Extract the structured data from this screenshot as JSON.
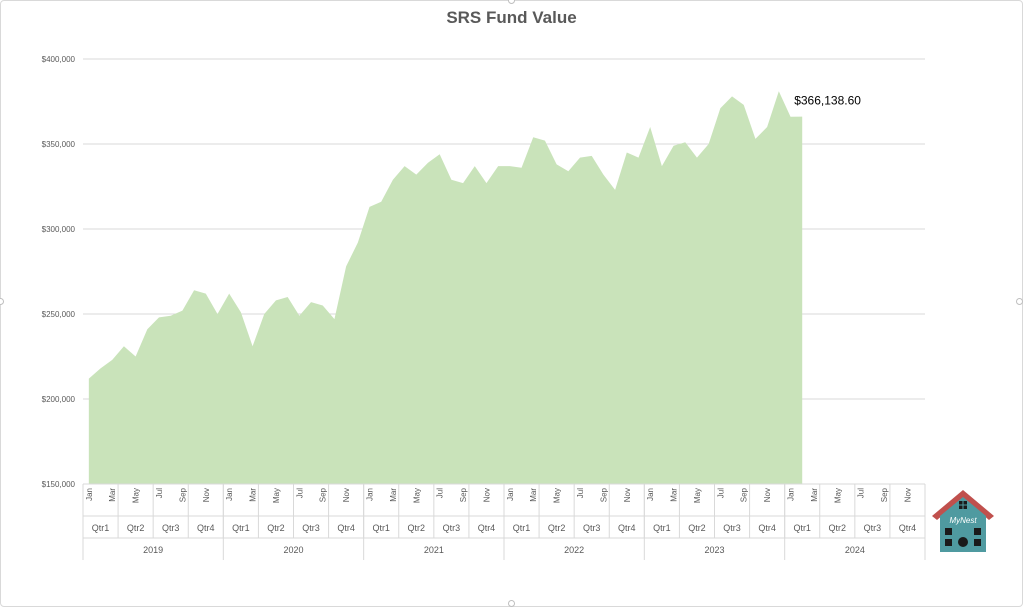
{
  "chart_data": {
    "type": "area",
    "title": "SRS Fund Value",
    "xlabel": "",
    "ylabel": "",
    "ylim": [
      150000,
      400000
    ],
    "y_ticks": [
      "$150,000",
      "$200,000",
      "$250,000",
      "$300,000",
      "$350,000",
      "$400,000"
    ],
    "grid": true,
    "legend": "none",
    "color": "#c9e3ba",
    "years": [
      "2019",
      "2020",
      "2021",
      "2022",
      "2023",
      "2024"
    ],
    "quarters": [
      "Qtr1",
      "Qtr2",
      "Qtr3",
      "Qtr4"
    ],
    "month_labels": [
      "Jan",
      "Mar",
      "May",
      "Jul",
      "Sep",
      "Nov"
    ],
    "series": [
      {
        "values": [
          212000,
          218000,
          223000,
          231000,
          225000,
          241000,
          248000,
          249000,
          252000,
          264000,
          262000,
          250000,
          262000,
          251000,
          231000,
          250000,
          258000,
          260000,
          249000,
          257000,
          255000,
          247000,
          278000,
          292000,
          313000,
          316000,
          329000,
          337000,
          332000,
          339000,
          344000,
          329000,
          327000,
          337000,
          327000,
          337000,
          337000,
          336000,
          354000,
          352000,
          338000,
          334000,
          342000,
          343000,
          332000,
          323000,
          345000,
          342000,
          360000,
          337000,
          349000,
          351000,
          342000,
          350000,
          371000,
          378000,
          373000,
          353000,
          360000,
          381000,
          366000,
          366138.6
        ]
      }
    ],
    "data_label": "$366,138.60"
  },
  "logo": {
    "text": "MyNest",
    "roof_color": "#c0504d",
    "body_color": "#4f9aa0"
  }
}
